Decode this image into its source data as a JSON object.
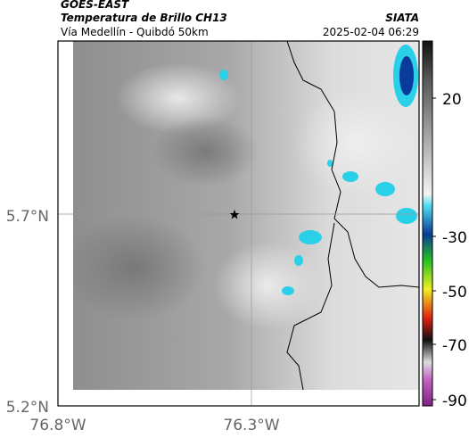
{
  "header": {
    "title": "GOES-EAST",
    "subtitle": "Temperatura de Brillo CH13",
    "route": "Vía Medellín - Quibdó 50km",
    "source": "SIATA",
    "datetime": "2025-02-04 06:29"
  },
  "map": {
    "lat_labels": [
      "5.7°N",
      "5.2°N"
    ],
    "lon_labels": [
      "76.8°W",
      "76.3°W"
    ]
  },
  "colorbar": {
    "labels": [
      "20",
      "-30",
      "-50",
      "-70",
      "-90"
    ]
  }
}
